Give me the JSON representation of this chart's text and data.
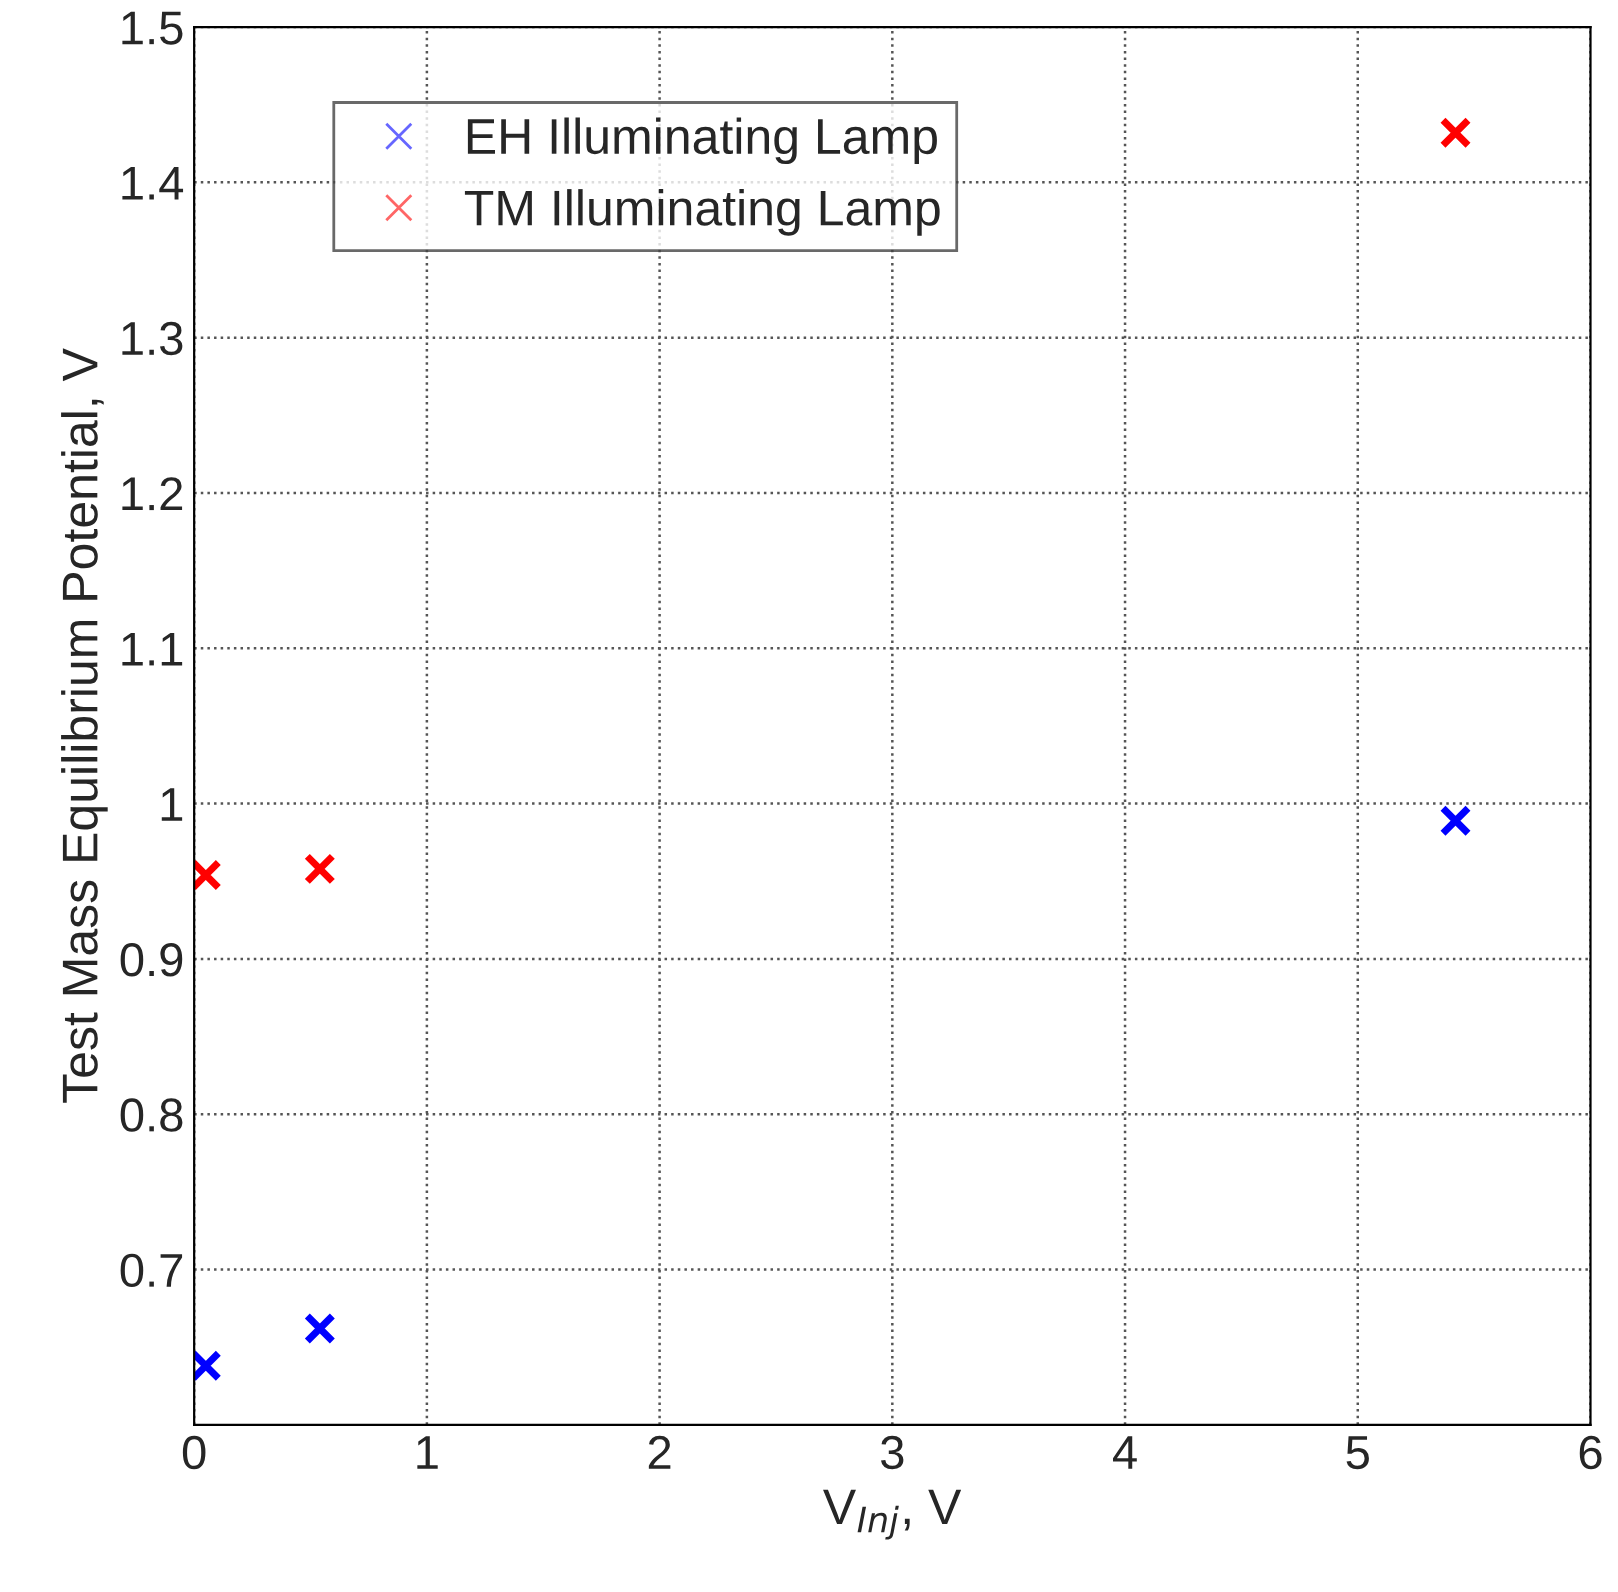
{
  "chart_data": {
    "type": "scatter",
    "xlabel": "V$_{Inj}$, V",
    "ylabel": "Test Mass Equilibrium Potential, V",
    "x": [
      0.05,
      0.54,
      5.42
    ],
    "series": [
      {
        "name": "EH Illuminating Lamp",
        "color": "#0000ff",
        "values": [
          0.638,
          0.662,
          0.989
        ]
      },
      {
        "name": "TM Illuminating Lamp",
        "color": "#ff0000",
        "values": [
          0.954,
          0.958,
          1.432
        ]
      }
    ],
    "xlim": [
      0,
      6
    ],
    "xticks": [
      0,
      1,
      2,
      3,
      4,
      5,
      6
    ],
    "ylim": [
      0.6,
      1.5
    ],
    "yticks": [
      0.7,
      0.8,
      0.9,
      1,
      1.1,
      1.2,
      1.3,
      1.4,
      1.5
    ],
    "grid": true,
    "legend": "top left",
    "marker": "cross"
  }
}
